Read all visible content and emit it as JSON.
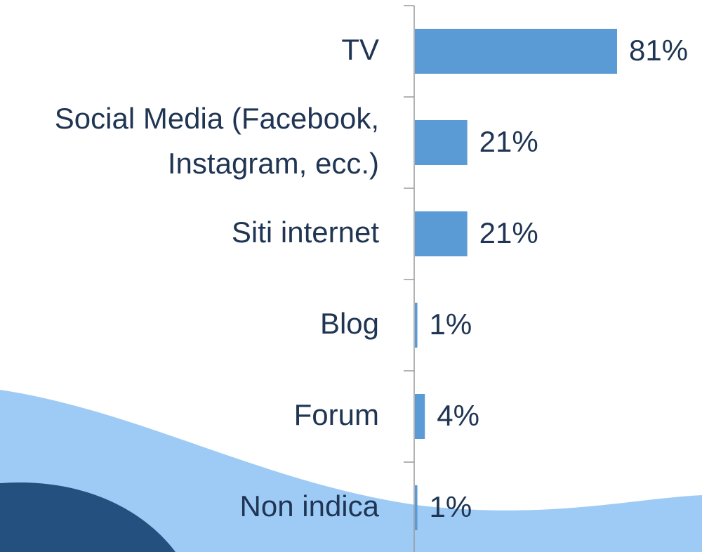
{
  "chart_data": {
    "type": "bar",
    "orientation": "horizontal",
    "categories": [
      "TV",
      "Social Media (Facebook, Instagram, ecc.)",
      "Siti internet",
      "Blog",
      "Forum",
      "Non indica"
    ],
    "values": [
      81,
      21,
      21,
      1,
      4,
      1
    ],
    "value_labels": [
      "81%",
      "21%",
      "21%",
      "1%",
      "4%",
      "1%"
    ],
    "color": "#5b9bd5"
  }
}
